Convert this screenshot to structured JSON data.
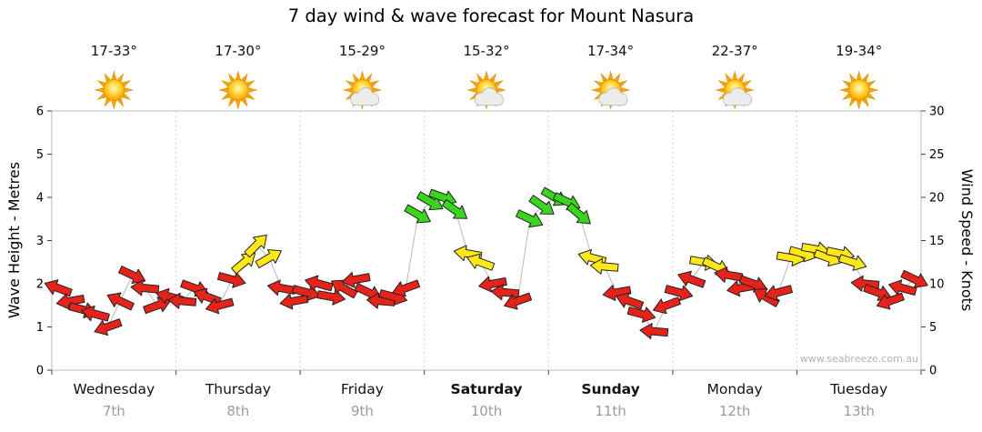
{
  "title": "7 day wind & wave forecast for Mount Nasura",
  "watermark": "www.seabreeze.com.au",
  "days": [
    {
      "name": "Wednesday",
      "date": "7th",
      "temp": "17-33°",
      "icon": "sun",
      "bold": false
    },
    {
      "name": "Thursday",
      "date": "8th",
      "temp": "17-30°",
      "icon": "sun",
      "bold": false
    },
    {
      "name": "Friday",
      "date": "9th",
      "temp": "15-29°",
      "icon": "sun-cloud",
      "bold": false
    },
    {
      "name": "Saturday",
      "date": "10th",
      "temp": "15-32°",
      "icon": "sun-cloud",
      "bold": true
    },
    {
      "name": "Sunday",
      "date": "11th",
      "temp": "17-34°",
      "icon": "sun-cloud",
      "bold": true
    },
    {
      "name": "Monday",
      "date": "12th",
      "temp": "22-37°",
      "icon": "sun-cloud",
      "bold": false
    },
    {
      "name": "Tuesday",
      "date": "13th",
      "temp": "19-34°",
      "icon": "sun",
      "bold": false
    }
  ],
  "chart_data": {
    "type": "scatter",
    "subtype": "wind-direction-arrows",
    "ylabel_left": "Wave Height - Metres",
    "ylabel_right": "Wind Speed - Knots",
    "ylim_metres": [
      0,
      6
    ],
    "ylim_knots": [
      0,
      30
    ],
    "yticks_metres": [
      0,
      1,
      2,
      3,
      4,
      5,
      6
    ],
    "yticks_knots": [
      0,
      5,
      10,
      15,
      20,
      25,
      30
    ],
    "slots_per_day": 10,
    "color_scale": {
      "red_below_knots": 11.5,
      "yellow_below_knots": 16
    },
    "colors": {
      "red": "#e5231b",
      "yellow": "#ffe818",
      "green": "#3bd41f",
      "outline": "#222222",
      "connector": "#b8b8b8"
    },
    "series": [
      {
        "day": "Wednesday",
        "knots": [
          9.5,
          8,
          7,
          6.5,
          5,
          8,
          11,
          9.5,
          7.5,
          8.5
        ],
        "dir_deg": [
          200,
          170,
          15,
          195,
          160,
          205,
          25,
          185,
          340,
          195
        ]
      },
      {
        "day": "Thursday",
        "knots": [
          8,
          9.5,
          8.5,
          7.5,
          10.5,
          12.5,
          14.5,
          13,
          9.5,
          8
        ],
        "dir_deg": [
          185,
          20,
          200,
          165,
          15,
          320,
          315,
          330,
          190,
          170
        ]
      },
      {
        "day": "Friday",
        "knots": [
          9,
          10,
          8.5,
          9.5,
          10.5,
          9,
          8,
          8.5,
          9.5,
          18
        ],
        "dir_deg": [
          15,
          195,
          10,
          210,
          170,
          25,
          185,
          15,
          160,
          30
        ]
      },
      {
        "day": "Saturday",
        "knots": [
          19.5,
          20,
          18.5,
          13.5,
          12.5,
          10,
          9,
          8,
          17.5,
          19
        ],
        "dir_deg": [
          30,
          20,
          35,
          190,
          200,
          170,
          185,
          160,
          25,
          35
        ]
      },
      {
        "day": "Sunday",
        "knots": [
          20,
          19.5,
          18,
          13,
          12,
          9,
          8,
          6.5,
          4.5,
          7.5
        ],
        "dir_deg": [
          30,
          25,
          40,
          195,
          185,
          170,
          200,
          15,
          185,
          160
        ]
      },
      {
        "day": "Monday",
        "knots": [
          9,
          10.5,
          12.5,
          12,
          11,
          9.5,
          10,
          8.5,
          9,
          13
        ],
        "dir_deg": [
          15,
          200,
          10,
          25,
          190,
          170,
          20,
          210,
          165,
          10
        ]
      },
      {
        "day": "Tuesday",
        "knots": [
          13.5,
          14,
          13,
          13.5,
          12.5,
          10,
          9,
          8,
          9.5,
          10.5
        ],
        "dir_deg": [
          15,
          10,
          20,
          12,
          18,
          185,
          20,
          160,
          195,
          25
        ]
      }
    ]
  }
}
